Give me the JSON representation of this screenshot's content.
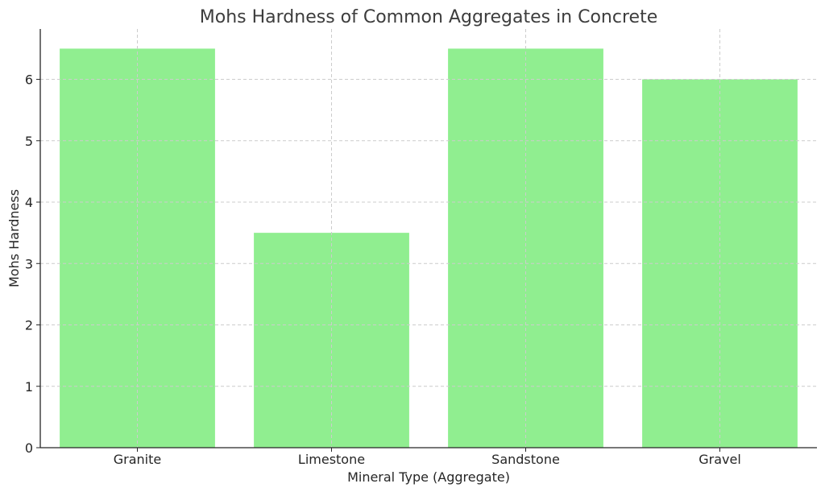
{
  "chart_data": {
    "type": "bar",
    "title": "Mohs Hardness of Common Aggregates in Concrete",
    "xlabel": "Mineral Type (Aggregate)",
    "ylabel": "Mohs Hardness",
    "categories": [
      "Granite",
      "Limestone",
      "Sandstone",
      "Gravel"
    ],
    "values": [
      6.5,
      3.5,
      6.5,
      6.0
    ],
    "ylim": [
      0,
      6.82
    ],
    "yticks": [
      0,
      1,
      2,
      3,
      4,
      5,
      6
    ],
    "grid": true,
    "bar_color": "#90ee90"
  }
}
